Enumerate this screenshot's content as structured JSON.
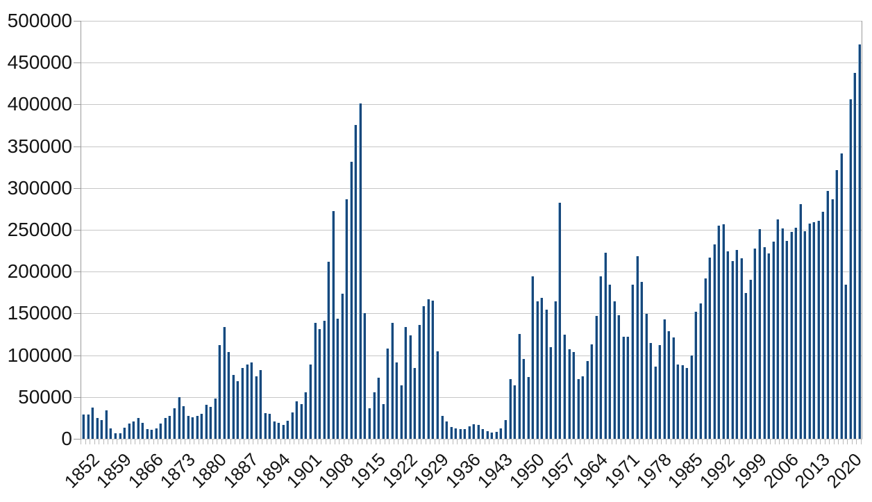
{
  "chart_data": {
    "type": "bar",
    "title": "",
    "xlabel": "",
    "ylabel": "",
    "x_start": 1852,
    "x_end": 2023,
    "values": [
      29307,
      29464,
      37263,
      25296,
      22439,
      33854,
      12339,
      6300,
      6276,
      13589,
      18294,
      21000,
      24779,
      18958,
      11427,
      10666,
      12765,
      18630,
      24706,
      27773,
      36578,
      50050,
      39373,
      27382,
      25633,
      27082,
      29807,
      40492,
      38505,
      47991,
      112458,
      133624,
      103824,
      76169,
      69152,
      84526,
      88766,
      91600,
      75067,
      82165,
      30996,
      29633,
      20829,
      18790,
      16835,
      21716,
      31900,
      44543,
      41681,
      55747,
      89102,
      138660,
      131252,
      141465,
      211653,
      272409,
      143326,
      173694,
      286839,
      331288,
      375756,
      400870,
      150484,
      36665,
      55914,
      72910,
      41845,
      107698,
      138824,
      91728,
      64224,
      133729,
      124164,
      84907,
      135982,
      158886,
      166783,
      164993,
      104806,
      27530,
      20591,
      14382,
      12476,
      11277,
      11643,
      15101,
      17244,
      16994,
      11324,
      9329,
      7576,
      8504,
      12801,
      22722,
      71719,
      64127,
      125414,
      95217,
      73912,
      194391,
      164498,
      168868,
      154227,
      109946,
      164857,
      282164,
      124851,
      106928,
      104111,
      71698,
      74856,
      93151,
      112606,
      146758,
      194743,
      222876,
      183974,
      164531,
      147713,
      121900,
      122006,
      184200,
      218465,
      187881,
      149429,
      114914,
      86313,
      112093,
      143140,
      128642,
      121179,
      89189,
      88272,
      84349,
      99355,
      152079,
      161584,
      191555,
      216452,
      232808,
      254789,
      256637,
      224373,
      212865,
      226071,
      216036,
      174195,
      189951,
      227457,
      250637,
      229048,
      221349,
      235823,
      262242,
      251640,
      236753,
      247245,
      252174,
      280687,
      248748,
      257887,
      258953,
      260404,
      271845,
      296346,
      286479,
      321035,
      341180,
      184598,
      405999,
      437539,
      471771
    ],
    "ylim": [
      0,
      500000
    ],
    "ytick_step": 50000,
    "y_tick_labels": [
      "0",
      "50000",
      "100000",
      "150000",
      "200000",
      "250000",
      "300000",
      "350000",
      "400000",
      "450000",
      "500000"
    ],
    "x_tick_labels": [
      "1852",
      "1859",
      "1866",
      "1873",
      "1880",
      "1887",
      "1894",
      "1901",
      "1908",
      "1915",
      "1922",
      "1929",
      "1936",
      "1943",
      "1950",
      "1957",
      "1964",
      "1971",
      "1978",
      "1985",
      "1992",
      "1999",
      "2006",
      "2013",
      "2020"
    ],
    "x_label_every": 7,
    "grid": "horizontal",
    "legend": "none",
    "bar_color": "#17487c",
    "bar_edge_color": "#9dc3e0",
    "gridline_color": "#c6c6c6",
    "axis_color": "#9a9a9a",
    "tick_color": "#b9b9b9",
    "text_color": "#141414",
    "background_color": "#ffffff"
  }
}
